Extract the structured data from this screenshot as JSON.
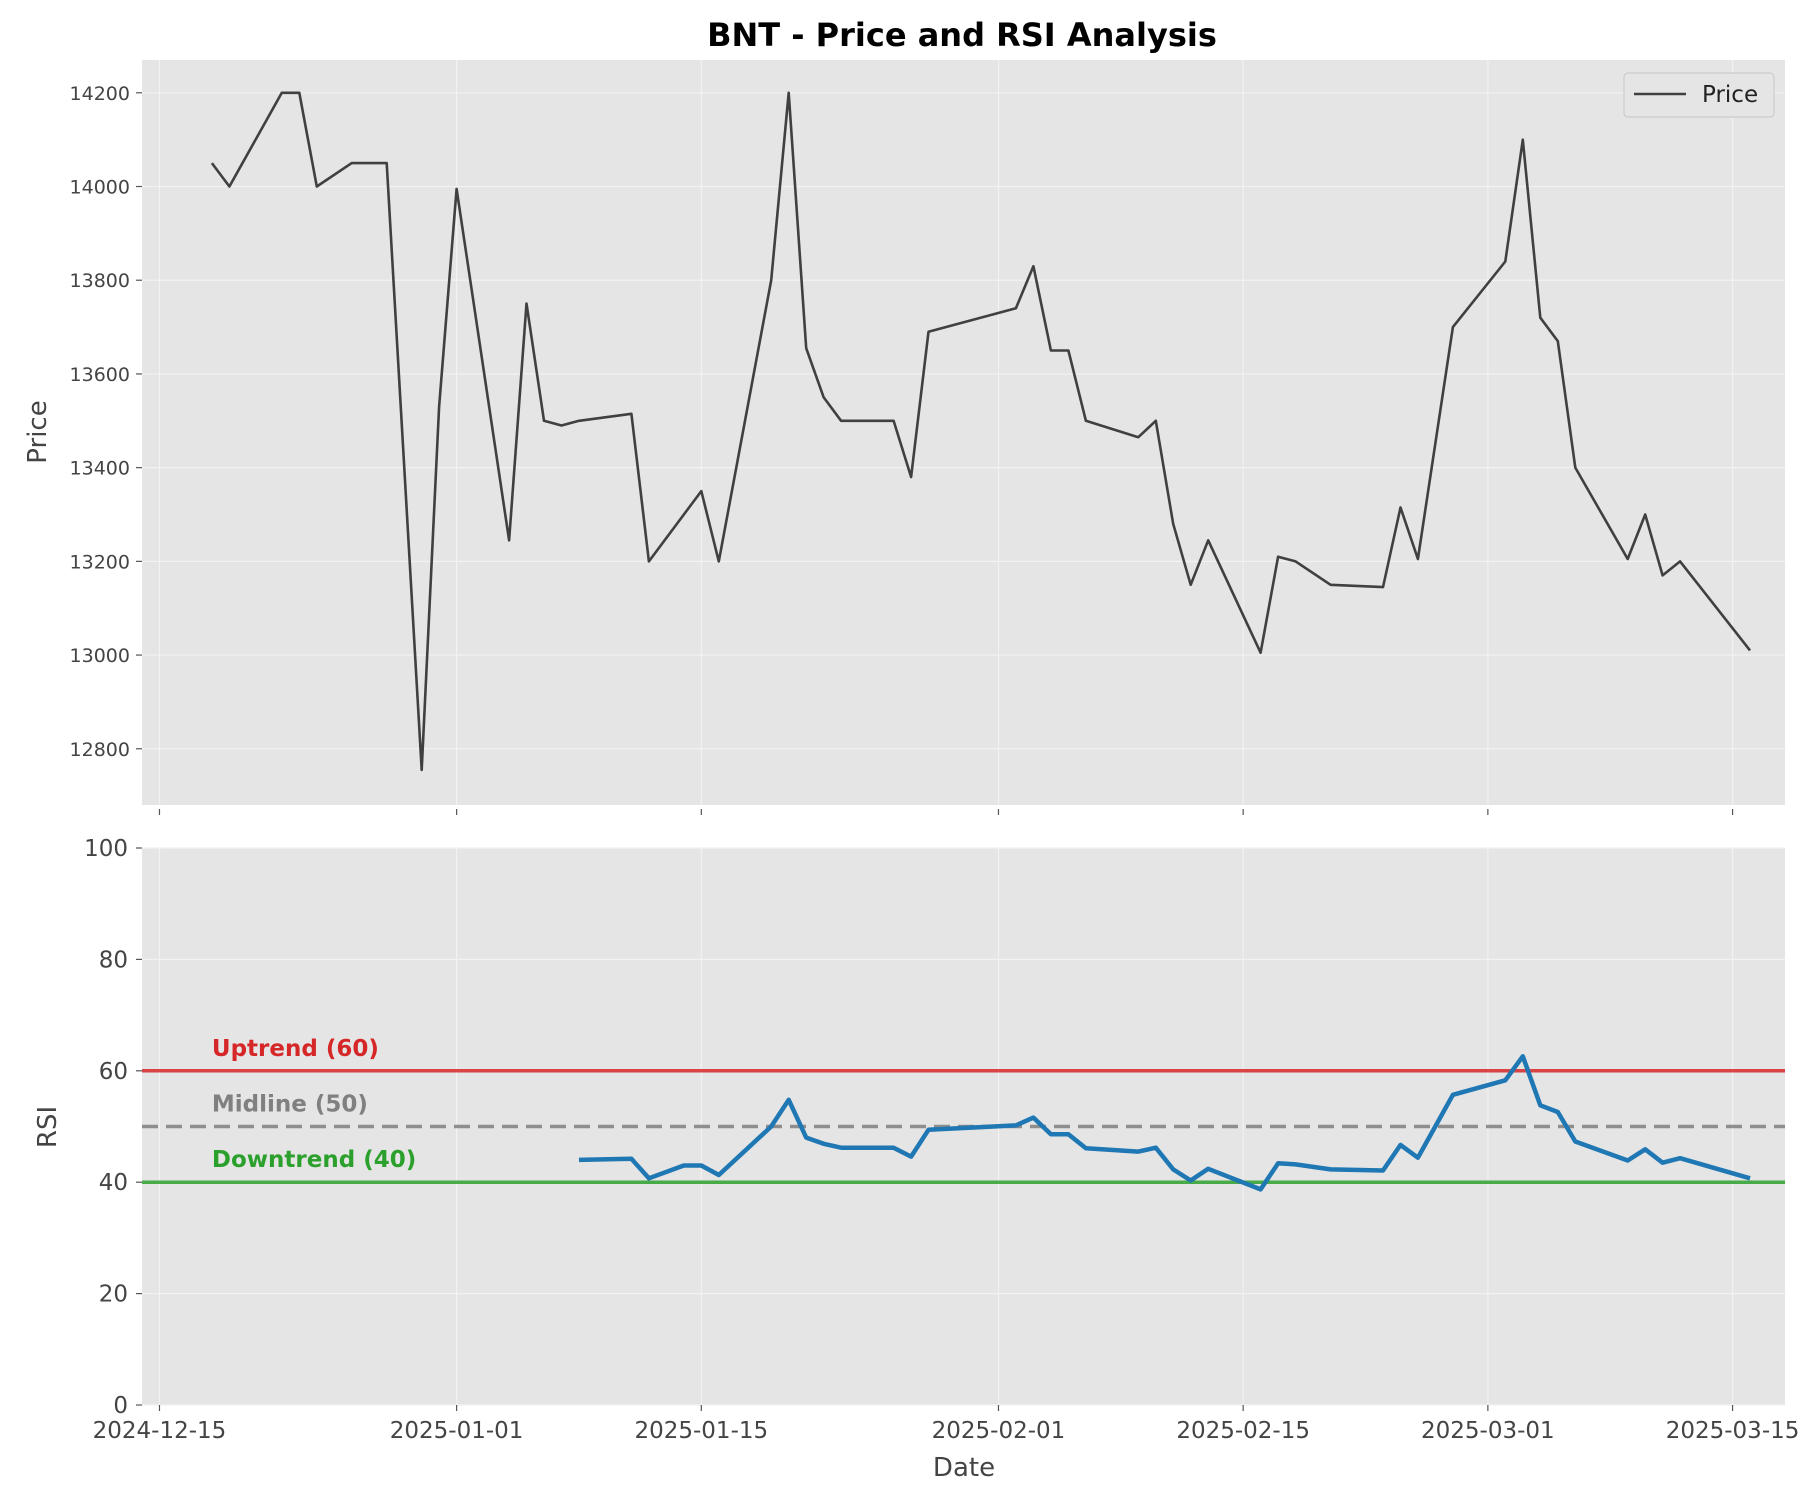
{
  "chart_data": [
    {
      "type": "line",
      "title": "BNT - Price and RSI Analysis",
      "xlabel": "",
      "ylabel": "Price",
      "xlim": [
        "2024-12-14",
        "2025-03-18"
      ],
      "ylim": [
        12680,
        14270
      ],
      "yticks": [
        12800,
        13000,
        13200,
        13400,
        13600,
        13800,
        14000,
        14200
      ],
      "grid": true,
      "legend": {
        "position": "top-right",
        "entries": [
          {
            "label": "Price",
            "color": "#404040"
          }
        ]
      },
      "series": [
        {
          "name": "Price",
          "color": "#404040",
          "points": [
            [
              "2024-12-18",
              14050
            ],
            [
              "2024-12-19",
              14000
            ],
            [
              "2024-12-22",
              14200
            ],
            [
              "2024-12-23",
              14200
            ],
            [
              "2024-12-24",
              14000
            ],
            [
              "2024-12-26",
              14050
            ],
            [
              "2024-12-28",
              14050
            ],
            [
              "2024-12-30",
              12755
            ],
            [
              "2024-12-31",
              13530
            ],
            [
              "2025-01-01",
              13995
            ],
            [
              "2025-01-04",
              13245
            ],
            [
              "2025-01-05",
              13750
            ],
            [
              "2025-01-06",
              13500
            ],
            [
              "2025-01-07",
              13490
            ],
            [
              "2025-01-08",
              13500
            ],
            [
              "2025-01-11",
              13515
            ],
            [
              "2025-01-12",
              13200
            ],
            [
              "2025-01-15",
              13350
            ],
            [
              "2025-01-16",
              13200
            ],
            [
              "2025-01-19",
              13800
            ],
            [
              "2025-01-20",
              14200
            ],
            [
              "2025-01-21",
              13655
            ],
            [
              "2025-01-22",
              13550
            ],
            [
              "2025-01-23",
              13500
            ],
            [
              "2025-01-26",
              13500
            ],
            [
              "2025-01-27",
              13380
            ],
            [
              "2025-01-28",
              13690
            ],
            [
              "2025-02-02",
              13740
            ],
            [
              "2025-02-03",
              13830
            ],
            [
              "2025-02-04",
              13650
            ],
            [
              "2025-02-05",
              13650
            ],
            [
              "2025-02-06",
              13500
            ],
            [
              "2025-02-09",
              13465
            ],
            [
              "2025-02-10",
              13500
            ],
            [
              "2025-02-11",
              13280
            ],
            [
              "2025-02-12",
              13150
            ],
            [
              "2025-02-13",
              13245
            ],
            [
              "2025-02-16",
              13005
            ],
            [
              "2025-02-17",
              13210
            ],
            [
              "2025-02-18",
              13200
            ],
            [
              "2025-02-20",
              13150
            ],
            [
              "2025-02-23",
              13145
            ],
            [
              "2025-02-24",
              13315
            ],
            [
              "2025-02-25",
              13205
            ],
            [
              "2025-02-27",
              13700
            ],
            [
              "2025-03-02",
              13840
            ],
            [
              "2025-03-03",
              14100
            ],
            [
              "2025-03-04",
              13720
            ],
            [
              "2025-03-05",
              13670
            ],
            [
              "2025-03-06",
              13400
            ],
            [
              "2025-03-09",
              13205
            ],
            [
              "2025-03-10",
              13300
            ],
            [
              "2025-03-11",
              13170
            ],
            [
              "2025-03-12",
              13200
            ],
            [
              "2025-03-16",
              13010
            ]
          ]
        }
      ]
    },
    {
      "type": "line",
      "title": "",
      "xlabel": "Date",
      "ylabel": "RSI",
      "xlim": [
        "2024-12-14",
        "2025-03-18"
      ],
      "ylim": [
        0,
        100
      ],
      "yticks": [
        0,
        20,
        40,
        60,
        80,
        100
      ],
      "xticks": [
        "2024-12-15",
        "2025-01-01",
        "2025-01-15",
        "2025-02-01",
        "2025-02-15",
        "2025-03-01",
        "2025-03-15"
      ],
      "grid": true,
      "reference_lines": [
        {
          "label": "Uptrend (60)",
          "y": 60,
          "color": "#d62728",
          "style": "solid"
        },
        {
          "label": "Midline (50)",
          "y": 50,
          "color": "#808080",
          "style": "dashed"
        },
        {
          "label": "Downtrend (40)",
          "y": 40,
          "color": "#2ca02c",
          "style": "solid"
        }
      ],
      "series": [
        {
          "name": "RSI",
          "color": "#1f77b4",
          "points": [
            [
              "2025-01-08",
              44.0
            ],
            [
              "2025-01-11",
              44.2
            ],
            [
              "2025-01-12",
              40.7
            ],
            [
              "2025-01-14",
              43.0
            ],
            [
              "2025-01-15",
              43.0
            ],
            [
              "2025-01-16",
              41.3
            ],
            [
              "2025-01-19",
              50.0
            ],
            [
              "2025-01-20",
              54.8
            ],
            [
              "2025-01-21",
              48.0
            ],
            [
              "2025-01-22",
              46.9
            ],
            [
              "2025-01-23",
              46.2
            ],
            [
              "2025-01-26",
              46.2
            ],
            [
              "2025-01-27",
              44.6
            ],
            [
              "2025-01-28",
              49.4
            ],
            [
              "2025-02-02",
              50.2
            ],
            [
              "2025-02-03",
              51.6
            ],
            [
              "2025-02-04",
              48.6
            ],
            [
              "2025-02-05",
              48.6
            ],
            [
              "2025-02-06",
              46.1
            ],
            [
              "2025-02-09",
              45.5
            ],
            [
              "2025-02-10",
              46.2
            ],
            [
              "2025-02-11",
              42.3
            ],
            [
              "2025-02-12",
              40.3
            ],
            [
              "2025-02-13",
              42.4
            ],
            [
              "2025-02-16",
              38.7
            ],
            [
              "2025-02-17",
              43.4
            ],
            [
              "2025-02-18",
              43.2
            ],
            [
              "2025-02-20",
              42.3
            ],
            [
              "2025-02-23",
              42.1
            ],
            [
              "2025-02-24",
              46.7
            ],
            [
              "2025-02-25",
              44.4
            ],
            [
              "2025-02-27",
              55.7
            ],
            [
              "2025-03-02",
              58.3
            ],
            [
              "2025-03-03",
              62.6
            ],
            [
              "2025-03-04",
              53.8
            ],
            [
              "2025-03-05",
              52.6
            ],
            [
              "2025-03-06",
              47.3
            ],
            [
              "2025-03-09",
              43.9
            ],
            [
              "2025-03-10",
              45.9
            ],
            [
              "2025-03-11",
              43.5
            ],
            [
              "2025-03-12",
              44.3
            ],
            [
              "2025-03-16",
              40.7
            ]
          ]
        }
      ]
    }
  ]
}
